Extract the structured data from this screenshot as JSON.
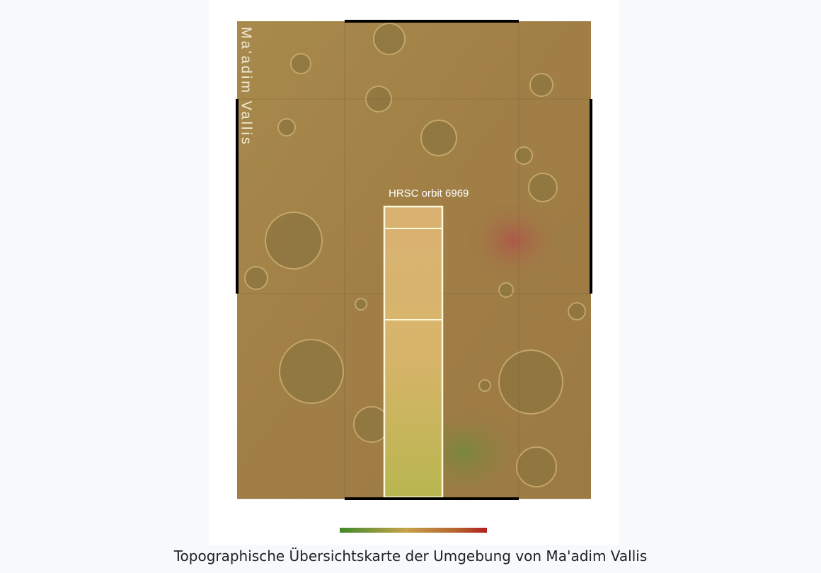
{
  "image": {
    "map_label": "Ma'adim Vallis",
    "strip_label": "HRSC orbit 6969"
  },
  "caption": "Topographische Übersichtskarte der Umgebung von Ma'adim Vallis"
}
